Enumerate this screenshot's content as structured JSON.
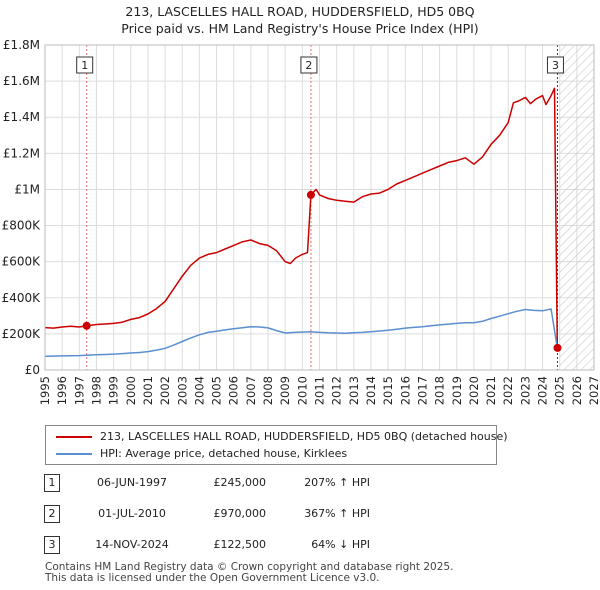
{
  "chart_data": {
    "type": "line",
    "title": "213, LASCELLES HALL ROAD, HUDDERSFIELD, HD5 0BQ",
    "subtitle": "Price paid vs. HM Land Registry's House Price Index (HPI)",
    "xlim": [
      1995,
      2027
    ],
    "ylim": [
      0,
      1800000
    ],
    "x_ticks": [
      1995,
      1996,
      1997,
      1998,
      1999,
      2000,
      2001,
      2002,
      2003,
      2004,
      2005,
      2006,
      2007,
      2008,
      2009,
      2010,
      2011,
      2012,
      2013,
      2014,
      2015,
      2016,
      2017,
      2018,
      2019,
      2020,
      2021,
      2022,
      2023,
      2024,
      2025,
      2026,
      2027
    ],
    "x_tick_labels": [
      "1995",
      "1996",
      "1997",
      "1998",
      "1999",
      "2000",
      "2001",
      "2002",
      "2003",
      "2004",
      "2005",
      "2006",
      "2007",
      "2008",
      "2009",
      "2010",
      "2011",
      "2012",
      "2013",
      "2014",
      "2015",
      "2016",
      "2017",
      "2018",
      "2019",
      "2020",
      "2021",
      "2022",
      "2023",
      "2024",
      "2025",
      "2026",
      "2027"
    ],
    "y_ticks": [
      0,
      200000,
      400000,
      600000,
      800000,
      1000000,
      1200000,
      1400000,
      1600000,
      1800000
    ],
    "y_tick_labels": [
      "£0",
      "£200K",
      "£400K",
      "£600K",
      "£800K",
      "£1M",
      "£1.2M",
      "£1.4M",
      "£1.6M",
      "£1.8M"
    ],
    "projection_start": 2025.0,
    "series": [
      {
        "name": "213, LASCELLES HALL ROAD, HUDDERSFIELD, HD5 0BQ (detached house)",
        "color": "#cc0000",
        "x": [
          1995.0,
          1995.5,
          1996.0,
          1996.5,
          1997.0,
          1997.43,
          1998.0,
          1998.5,
          1999.0,
          1999.5,
          2000.0,
          2000.5,
          2001.0,
          2001.5,
          2002.0,
          2002.5,
          2003.0,
          2003.5,
          2004.0,
          2004.5,
          2005.0,
          2005.5,
          2006.0,
          2006.5,
          2007.0,
          2007.5,
          2008.0,
          2008.5,
          2009.0,
          2009.3,
          2009.6,
          2010.0,
          2010.3,
          2010.5,
          2010.8,
          2011.0,
          2011.5,
          2012.0,
          2012.5,
          2013.0,
          2013.5,
          2014.0,
          2014.5,
          2015.0,
          2015.5,
          2016.0,
          2016.5,
          2017.0,
          2017.5,
          2018.0,
          2018.5,
          2019.0,
          2019.5,
          2020.0,
          2020.5,
          2021.0,
          2021.5,
          2022.0,
          2022.3,
          2022.6,
          2023.0,
          2023.3,
          2023.6,
          2024.0,
          2024.2,
          2024.5,
          2024.7,
          2024.86
        ],
        "values": [
          235000,
          232000,
          238000,
          242000,
          238000,
          245000,
          252000,
          255000,
          258000,
          265000,
          280000,
          290000,
          310000,
          340000,
          380000,
          450000,
          520000,
          580000,
          620000,
          640000,
          650000,
          670000,
          690000,
          710000,
          720000,
          700000,
          690000,
          660000,
          600000,
          590000,
          620000,
          640000,
          650000,
          970000,
          1000000,
          970000,
          950000,
          940000,
          935000,
          930000,
          960000,
          975000,
          980000,
          1000000,
          1030000,
          1050000,
          1070000,
          1090000,
          1110000,
          1130000,
          1150000,
          1160000,
          1175000,
          1140000,
          1180000,
          1250000,
          1300000,
          1370000,
          1480000,
          1490000,
          1510000,
          1475000,
          1500000,
          1520000,
          1470000,
          1520000,
          1560000,
          122500
        ]
      },
      {
        "name": "HPI: Average price, detached house, Kirklees",
        "color": "#5b8fd0",
        "x": [
          1995.0,
          1995.5,
          1996.0,
          1996.5,
          1997.0,
          1997.43,
          1998.0,
          1998.5,
          1999.0,
          1999.5,
          2000.0,
          2000.5,
          2001.0,
          2001.5,
          2002.0,
          2002.5,
          2003.0,
          2003.5,
          2004.0,
          2004.5,
          2005.0,
          2005.5,
          2006.0,
          2006.5,
          2007.0,
          2007.5,
          2008.0,
          2008.5,
          2009.0,
          2009.5,
          2010.0,
          2010.5,
          2011.0,
          2011.5,
          2012.0,
          2012.5,
          2013.0,
          2013.5,
          2014.0,
          2014.5,
          2015.0,
          2015.5,
          2016.0,
          2016.5,
          2017.0,
          2017.5,
          2018.0,
          2018.5,
          2019.0,
          2019.5,
          2020.0,
          2020.5,
          2021.0,
          2021.5,
          2022.0,
          2022.5,
          2023.0,
          2023.5,
          2024.0,
          2024.5,
          2024.86
        ],
        "values": [
          76000,
          77000,
          78000,
          79000,
          80000,
          82000,
          84000,
          86000,
          88000,
          91000,
          94000,
          97000,
          102000,
          110000,
          120000,
          138000,
          158000,
          178000,
          195000,
          208000,
          215000,
          222000,
          228000,
          234000,
          240000,
          238000,
          233000,
          218000,
          205000,
          208000,
          210000,
          212000,
          208000,
          206000,
          205000,
          204000,
          206000,
          208000,
          212000,
          216000,
          220000,
          226000,
          232000,
          236000,
          240000,
          245000,
          250000,
          254000,
          258000,
          262000,
          262000,
          270000,
          285000,
          298000,
          312000,
          325000,
          335000,
          330000,
          328000,
          338000,
          122500
        ]
      }
    ],
    "transactions": [
      {
        "num": "1",
        "x": 1997.43,
        "value": 245000
      },
      {
        "num": "2",
        "x": 2010.5,
        "value": 970000
      },
      {
        "num": "3",
        "x": 2024.87,
        "value": 122500
      }
    ]
  },
  "legend": {
    "property_label": "213, LASCELLES HALL ROAD, HUDDERSFIELD, HD5 0BQ (detached house)",
    "hpi_label": "HPI: Average price, detached house, Kirklees"
  },
  "table": [
    {
      "num": "1",
      "date": "06-JUN-1997",
      "price": "£245,000",
      "hpi": "207% ↑ HPI"
    },
    {
      "num": "2",
      "date": "01-JUL-2010",
      "price": "£970,000",
      "hpi": "367% ↑ HPI"
    },
    {
      "num": "3",
      "date": "14-NOV-2024",
      "price": "£122,500",
      "hpi": "64% ↓ HPI"
    }
  ],
  "footer": {
    "line1": "Contains HM Land Registry data © Crown copyright and database right 2025.",
    "line2": "This data is licensed under the Open Government Licence v3.0."
  }
}
